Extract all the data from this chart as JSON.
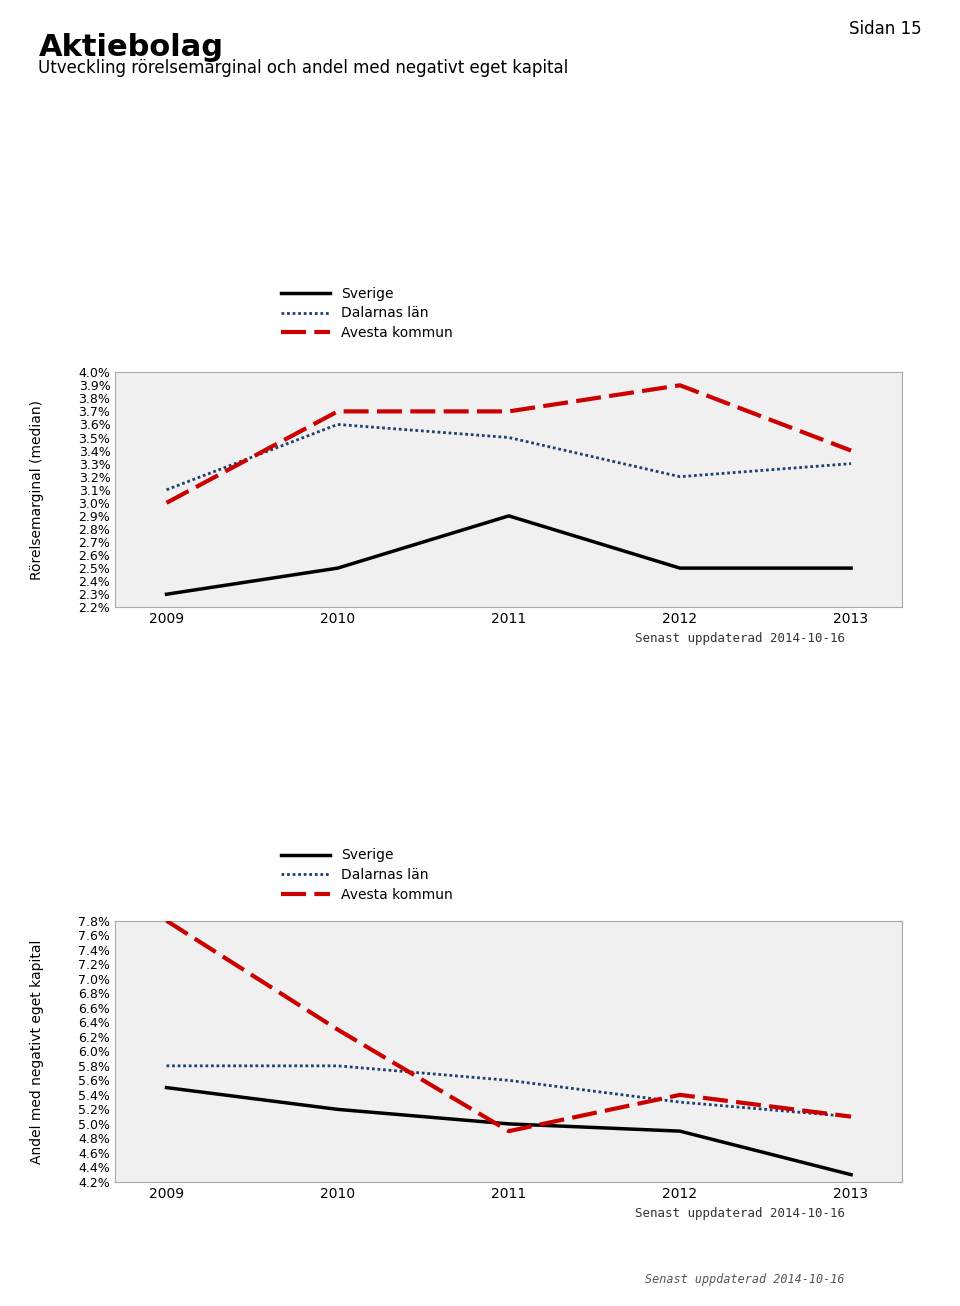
{
  "years": [
    2009,
    2010,
    2011,
    2012,
    2013
  ],
  "chart1": {
    "sverige": [
      2.3,
      2.5,
      2.9,
      2.5,
      2.5
    ],
    "dalarna": [
      3.1,
      3.6,
      3.5,
      3.2,
      3.3
    ],
    "avesta": [
      3.0,
      3.7,
      3.7,
      3.9,
      3.4
    ],
    "ylabel": "Rörelsemarginal (median)",
    "ylim_min": 2.2,
    "ylim_max": 4.0,
    "yticks": [
      2.2,
      2.3,
      2.4,
      2.5,
      2.6,
      2.7,
      2.8,
      2.9,
      3.0,
      3.1,
      3.2,
      3.3,
      3.4,
      3.5,
      3.6,
      3.7,
      3.8,
      3.9,
      4.0
    ]
  },
  "chart2": {
    "sverige": [
      5.5,
      5.2,
      5.0,
      4.9,
      4.3
    ],
    "dalarna": [
      5.8,
      5.8,
      5.6,
      5.3,
      5.1
    ],
    "avesta": [
      7.8,
      6.3,
      4.9,
      5.4,
      5.1
    ],
    "ylabel": "Andel med negativt eget kapital",
    "ylim_min": 4.2,
    "ylim_max": 7.8,
    "yticks": [
      4.2,
      4.4,
      4.6,
      4.8,
      5.0,
      5.2,
      5.4,
      5.6,
      5.8,
      6.0,
      6.2,
      6.4,
      6.6,
      6.8,
      7.0,
      7.2,
      7.4,
      7.6,
      7.8
    ]
  },
  "title": "Aktiebolag",
  "subtitle": "Utveckling rörelsemarginal och andel med negativt eget kapital",
  "page_label": "Sidan 15",
  "legend_labels": [
    "Sverige",
    "Dalarnas län",
    "Avesta kommun"
  ],
  "sverige_color": "#000000",
  "dalarna_color": "#1f3f6e",
  "avesta_color": "#cc0000",
  "update_text": "Senast uppdaterad 2014-10-16",
  "bg_color": "#e8e8e8",
  "plot_bg_color": "#f0f0f0"
}
